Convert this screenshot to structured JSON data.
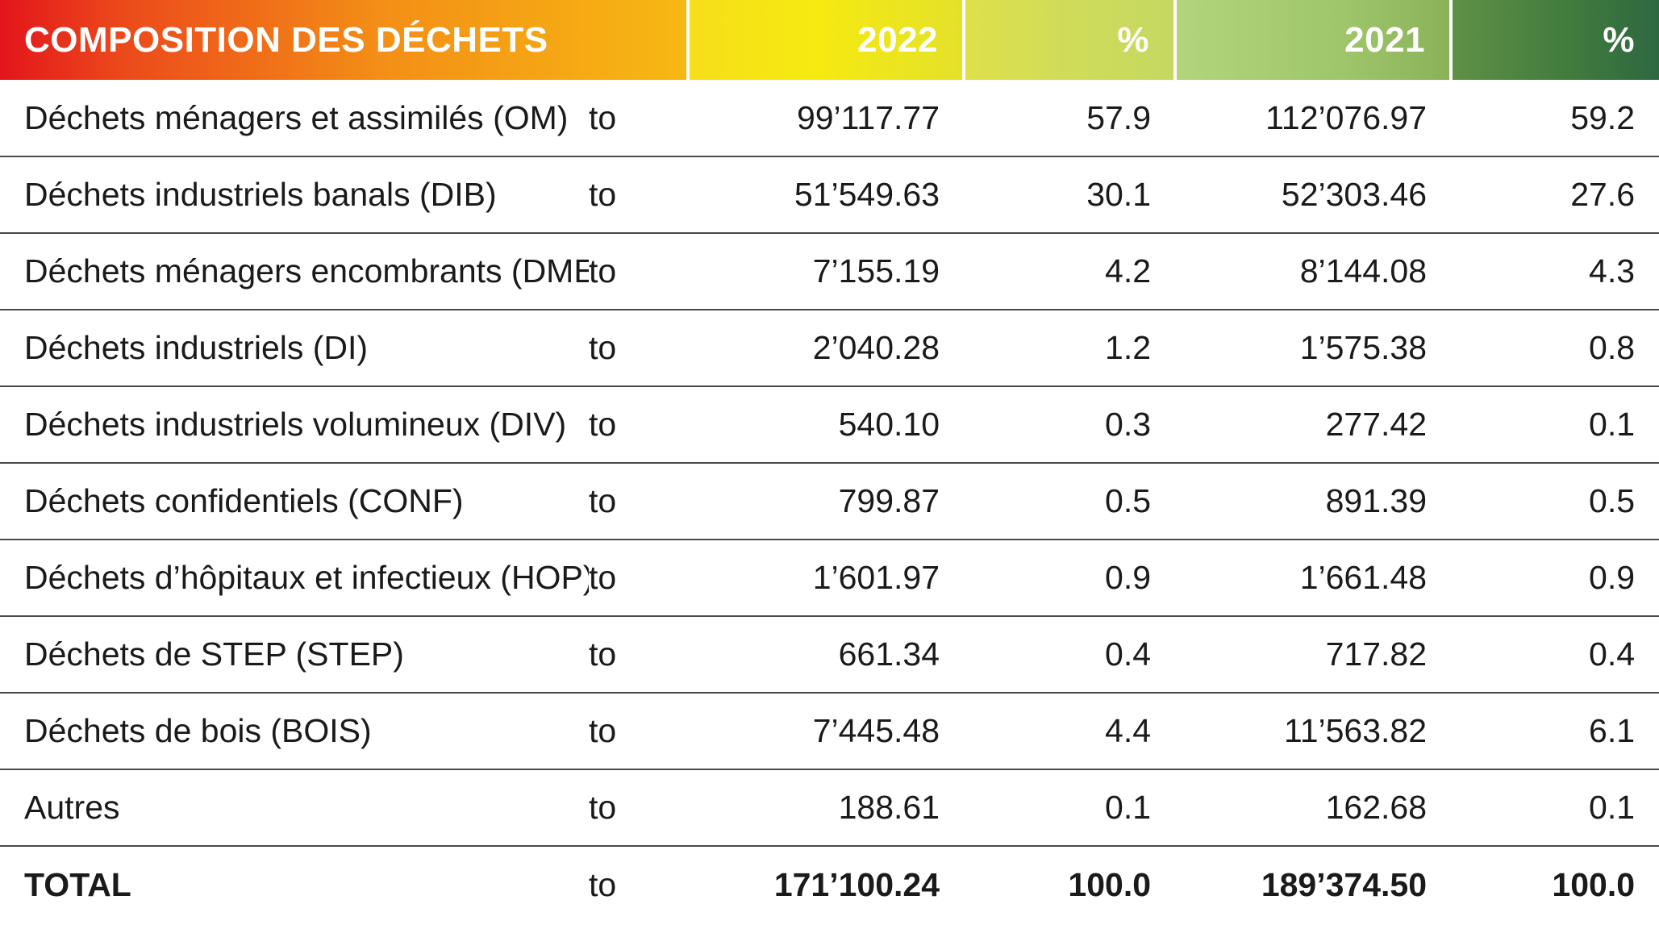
{
  "table": {
    "headers": {
      "title": "COMPOSITION DES DÉCHETS",
      "year_2022": "2022",
      "pct_2022": "%",
      "year_2021": "2021",
      "pct_2021": "%"
    },
    "header_colors": {
      "title_start": "#e3151b",
      "title_end": "#f7b813",
      "col_2022": "#f6ea10",
      "pct_2022": "#cfdc5a",
      "col_2021": "#9fc66b",
      "pct_2021": "#2e6840"
    },
    "rows": [
      {
        "label": "Déchets ménagers et assimilés (OM)",
        "unit": "to",
        "v2022": "99’117.77",
        "p2022": "57.9",
        "v2021": "112’076.97",
        "p2021": "59.2"
      },
      {
        "label": "Déchets industriels banals (DIB)",
        "unit": "to",
        "v2022": "51’549.63",
        "p2022": "30.1",
        "v2021": "52’303.46",
        "p2021": "27.6"
      },
      {
        "label": "Déchets ménagers encombrants (DME)",
        "unit": "to",
        "v2022": "7’155.19",
        "p2022": "4.2",
        "v2021": "8’144.08",
        "p2021": "4.3"
      },
      {
        "label": "Déchets industriels (DI)",
        "unit": "to",
        "v2022": "2’040.28",
        "p2022": "1.2",
        "v2021": "1’575.38",
        "p2021": "0.8"
      },
      {
        "label": "Déchets industriels volumineux (DIV)",
        "unit": "to",
        "v2022": "540.10",
        "p2022": "0.3",
        "v2021": "277.42",
        "p2021": "0.1"
      },
      {
        "label": "Déchets confidentiels (CONF)",
        "unit": "to",
        "v2022": "799.87",
        "p2022": "0.5",
        "v2021": "891.39",
        "p2021": "0.5"
      },
      {
        "label": "Déchets d’hôpitaux et infectieux (HOP)",
        "unit": "to",
        "v2022": "1’601.97",
        "p2022": "0.9",
        "v2021": "1’661.48",
        "p2021": "0.9"
      },
      {
        "label": "Déchets de STEP (STEP)",
        "unit": "to",
        "v2022": "661.34",
        "p2022": "0.4",
        "v2021": "717.82",
        "p2021": "0.4"
      },
      {
        "label": "Déchets de bois (BOIS)",
        "unit": "to",
        "v2022": "7’445.48",
        "p2022": "4.4",
        "v2021": "11’563.82",
        "p2021": "6.1"
      },
      {
        "label": "Autres",
        "unit": "to",
        "v2022": "188.61",
        "p2022": "0.1",
        "v2021": "162.68",
        "p2021": "0.1"
      }
    ],
    "total": {
      "label": "TOTAL",
      "unit": "to",
      "v2022": "171’100.24",
      "p2022": "100.0",
      "v2021": "189’374.50",
      "p2021": "100.0"
    }
  }
}
